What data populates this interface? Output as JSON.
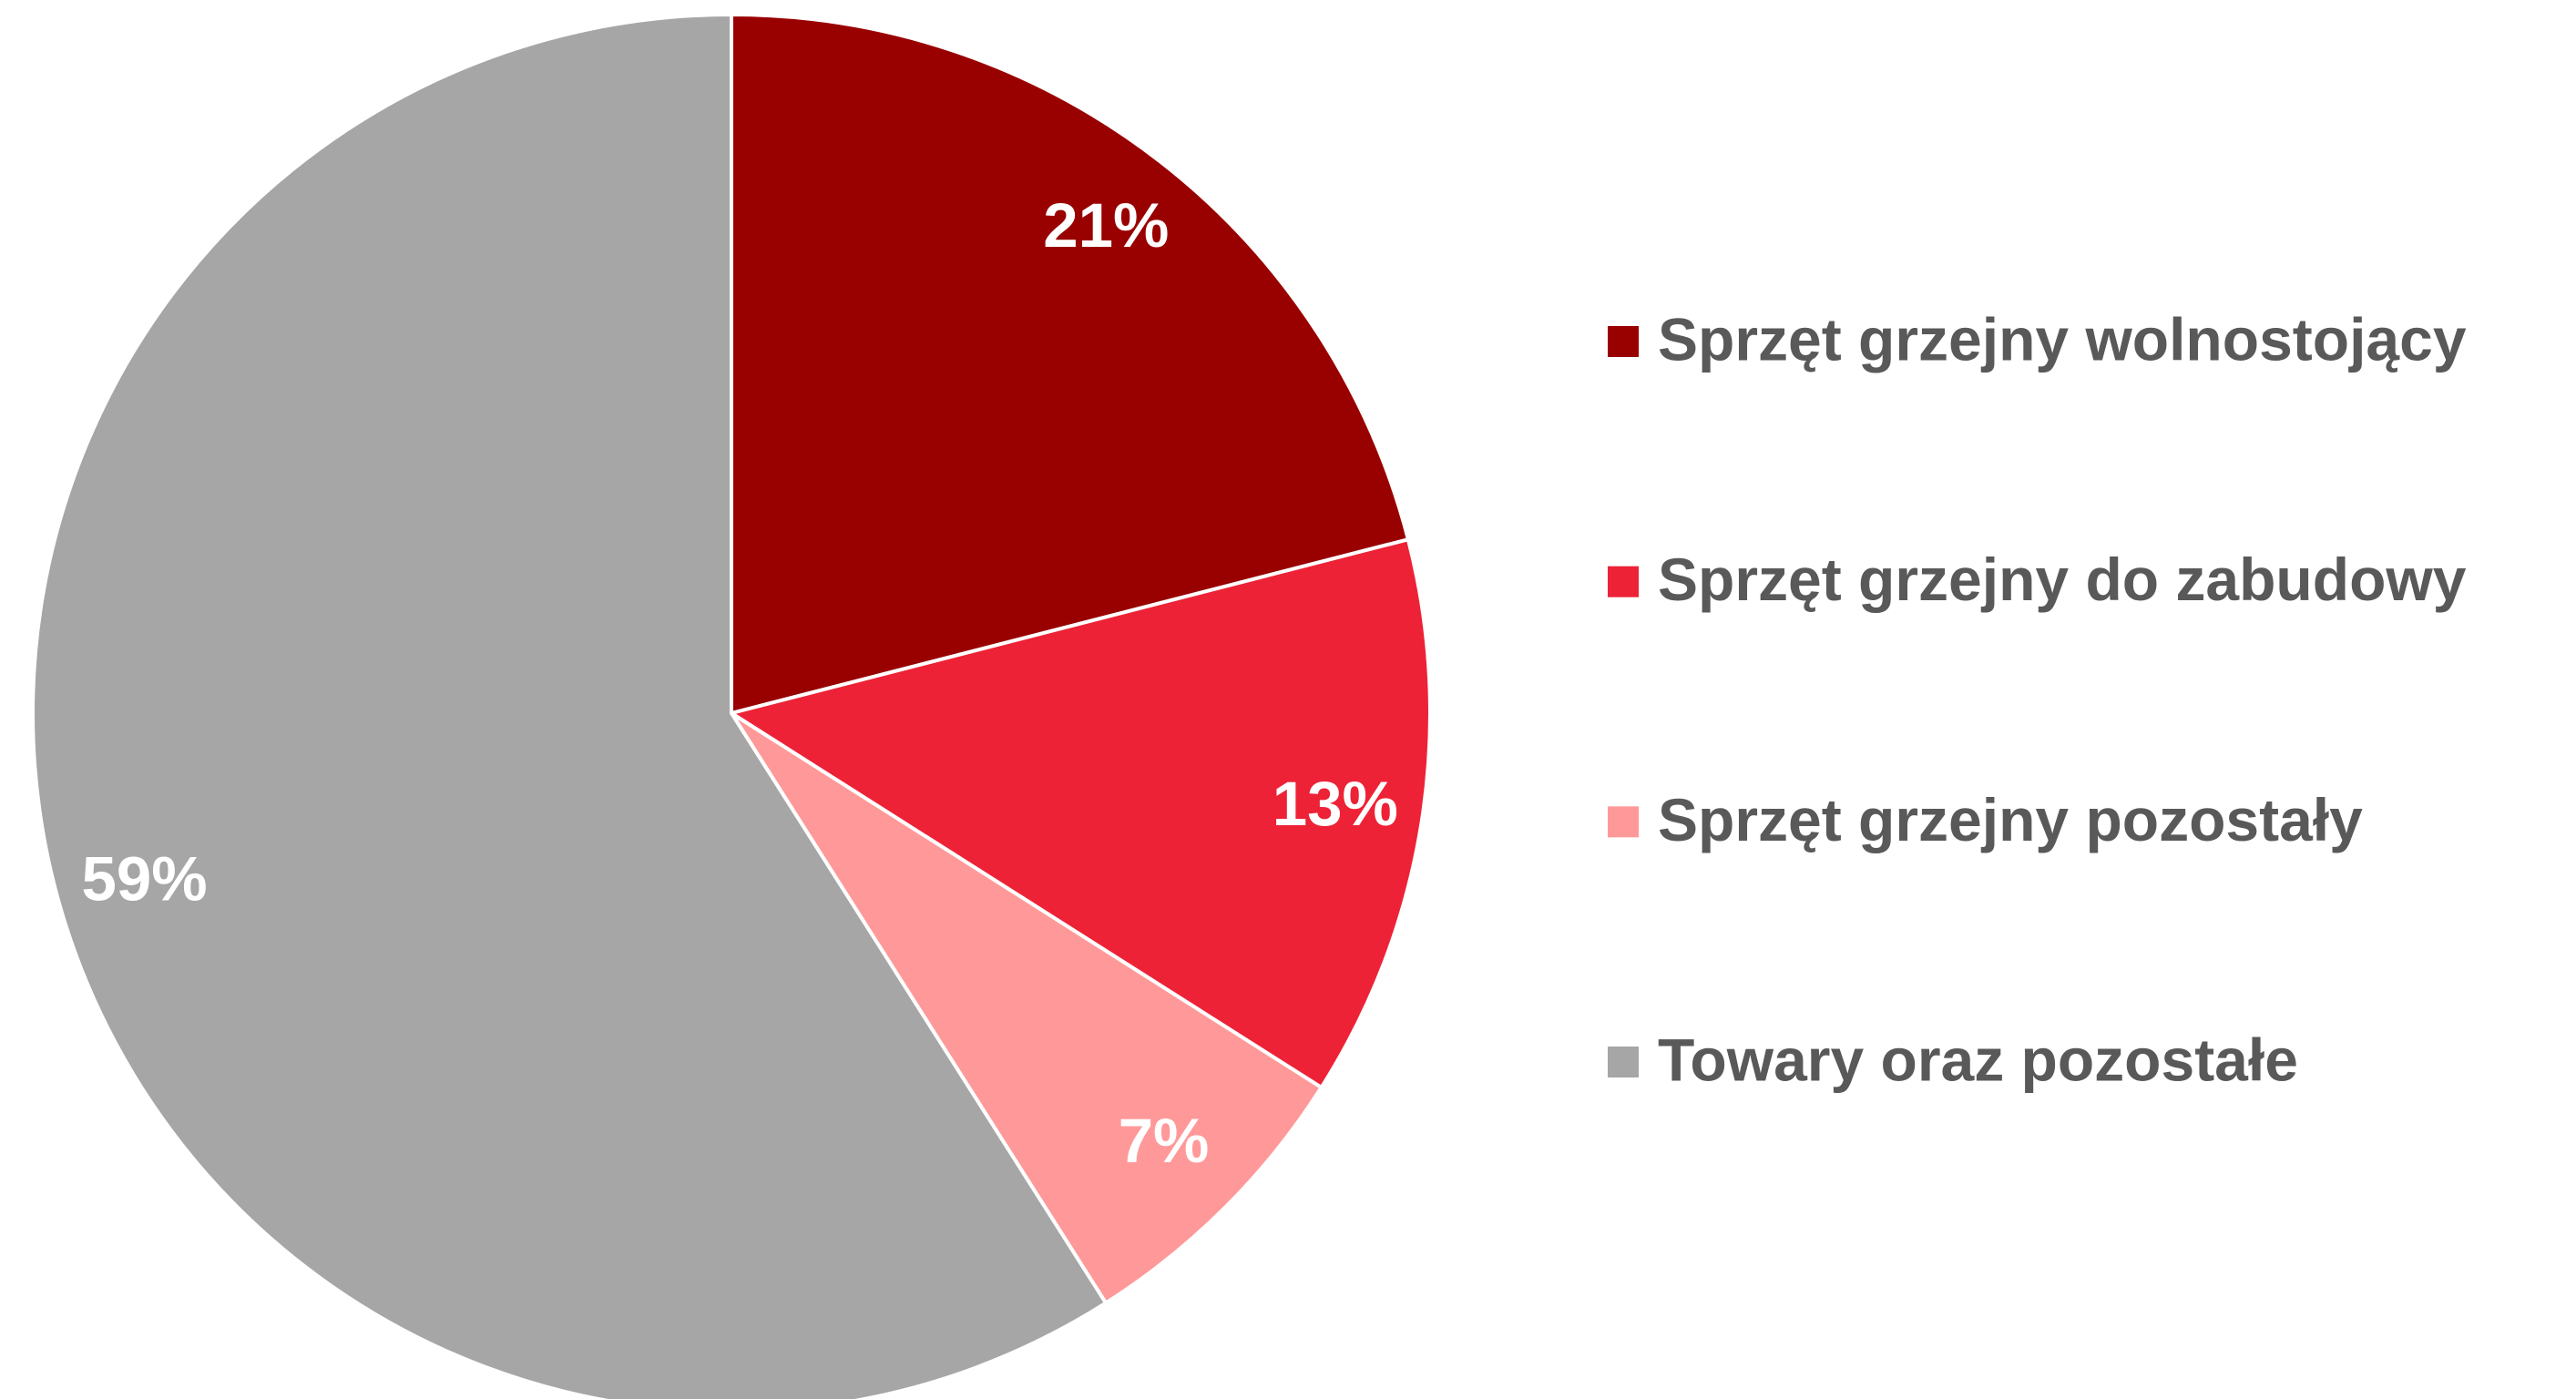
{
  "chart_data": {
    "type": "pie",
    "categories": [
      "Sprzęt grzejny wolnostojący",
      "Sprzęt grzejny do zabudowy",
      "Sprzęt grzejny pozostały",
      "Towary oraz pozostałe"
    ],
    "values": [
      21,
      13,
      7,
      59
    ],
    "value_labels": [
      "21%",
      "13%",
      "7%",
      "59%"
    ],
    "colors": [
      "#990000",
      "#ED2236",
      "#FF9999",
      "#A6A6A6"
    ],
    "legend": "right"
  }
}
